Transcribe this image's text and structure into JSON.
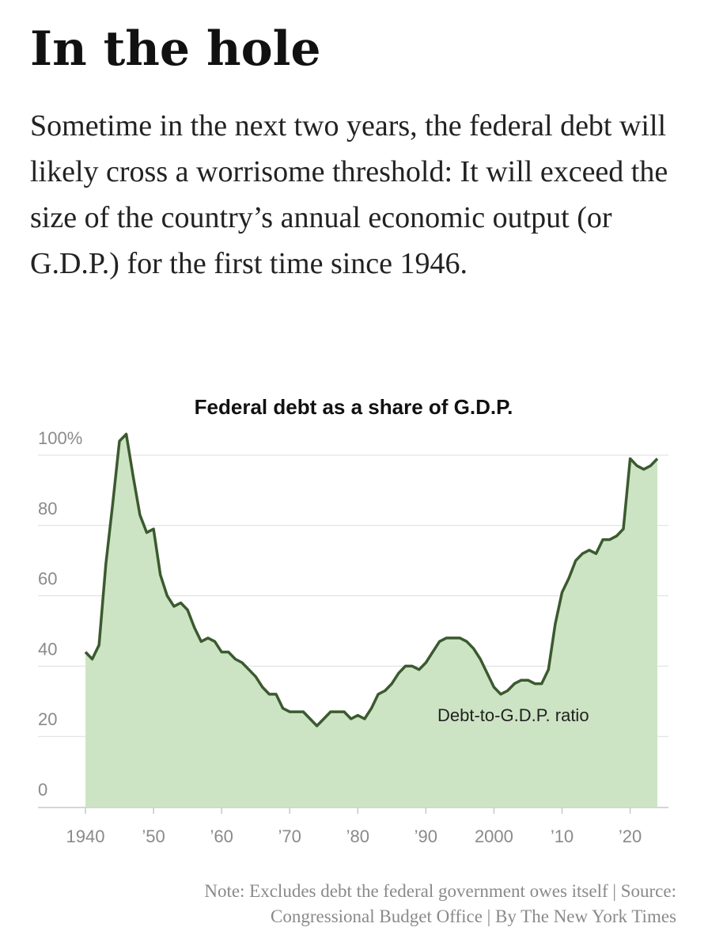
{
  "headline": "In the hole",
  "dek": "Sometime in the next two years, the federal debt will likely cross a worrisome threshold: It will exceed the size of the country’s annual economic output (or G.D.P.) for the first time since 1946.",
  "note": {
    "line1": "Note: Excludes debt the federal government owes itself | Source:",
    "line2": "Congressional Budget Office | By The New York Times"
  },
  "colors": {
    "fill": "#cde4c4",
    "line": "#3b5a2f",
    "grid": "#dddddd",
    "axis": "#c8c8c8"
  },
  "chart_data": {
    "type": "area",
    "title": "Federal debt as a share of G.D.P.",
    "xlabel": "",
    "ylabel": "",
    "xlim": [
      1940,
      2024
    ],
    "ylim": [
      0,
      100
    ],
    "yticks": [
      {
        "value": 0,
        "label": "0"
      },
      {
        "value": 20,
        "label": "20"
      },
      {
        "value": 40,
        "label": "40"
      },
      {
        "value": 60,
        "label": "60"
      },
      {
        "value": 80,
        "label": "80"
      },
      {
        "value": 100,
        "label": "100%"
      }
    ],
    "xticks": [
      {
        "value": 1940,
        "label": "1940"
      },
      {
        "value": 1950,
        "label": "’50"
      },
      {
        "value": 1960,
        "label": "’60"
      },
      {
        "value": 1970,
        "label": "’70"
      },
      {
        "value": 1980,
        "label": "’80"
      },
      {
        "value": 1990,
        "label": "’90"
      },
      {
        "value": 2000,
        "label": "2000"
      },
      {
        "value": 2010,
        "label": "’10"
      },
      {
        "value": 2020,
        "label": "’20"
      }
    ],
    "grid": true,
    "series": [
      {
        "name": "Debt-to-G.D.P. ratio",
        "x": [
          1940,
          1941,
          1942,
          1943,
          1944,
          1945,
          1946,
          1947,
          1948,
          1949,
          1950,
          1951,
          1952,
          1953,
          1954,
          1955,
          1956,
          1957,
          1958,
          1959,
          1960,
          1961,
          1962,
          1963,
          1964,
          1965,
          1966,
          1967,
          1968,
          1969,
          1970,
          1971,
          1972,
          1973,
          1974,
          1975,
          1976,
          1977,
          1978,
          1979,
          1980,
          1981,
          1982,
          1983,
          1984,
          1985,
          1986,
          1987,
          1988,
          1989,
          1990,
          1991,
          1992,
          1993,
          1994,
          1995,
          1996,
          1997,
          1998,
          1999,
          2000,
          2001,
          2002,
          2003,
          2004,
          2005,
          2006,
          2007,
          2008,
          2009,
          2010,
          2011,
          2012,
          2013,
          2014,
          2015,
          2016,
          2017,
          2018,
          2019,
          2020,
          2021,
          2022,
          2023,
          2024
        ],
        "values": [
          44,
          42,
          46,
          69,
          86,
          104,
          106,
          94,
          83,
          78,
          79,
          66,
          60,
          57,
          58,
          56,
          51,
          47,
          48,
          47,
          44,
          44,
          42,
          41,
          39,
          37,
          34,
          32,
          32,
          28,
          27,
          27,
          27,
          25,
          23,
          25,
          27,
          27,
          27,
          25,
          26,
          25,
          28,
          32,
          33,
          35,
          38,
          40,
          40,
          39,
          41,
          44,
          47,
          48,
          48,
          48,
          47,
          45,
          42,
          38,
          34,
          32,
          33,
          35,
          36,
          36,
          35,
          35,
          39,
          52,
          61,
          65,
          70,
          72,
          73,
          72,
          76,
          76,
          77,
          79,
          99,
          97,
          96,
          97,
          99
        ]
      }
    ]
  }
}
